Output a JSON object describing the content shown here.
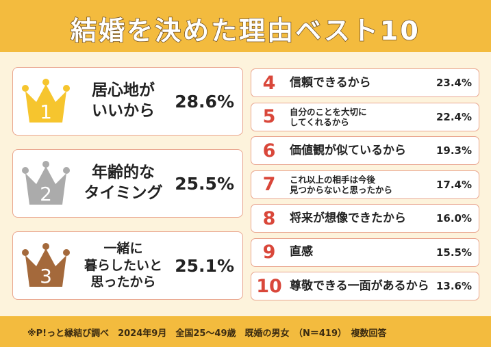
{
  "header": {
    "title": "結婚を決めた理由ベスト10"
  },
  "top": [
    {
      "rank": "1",
      "label": "居心地が\nいいから",
      "value": "28.6%"
    },
    {
      "rank": "2",
      "label": "年齢的な\nタイミング",
      "value": "25.5%"
    },
    {
      "rank": "3",
      "label": "一緒に\n暮らしたいと\n思ったから",
      "value": "25.1%"
    }
  ],
  "rest": [
    {
      "rank": "4",
      "label": "信頼できるから",
      "value": "23.4%"
    },
    {
      "rank": "5",
      "label": "自分のことを大切に\nしてくれるから",
      "value": "22.4%"
    },
    {
      "rank": "6",
      "label": "価値観が似ているから",
      "value": "19.3%"
    },
    {
      "rank": "7",
      "label": "これ以上の相手は今後\n見つからないと思ったから",
      "value": "17.4%"
    },
    {
      "rank": "8",
      "label": "将来が想像できたから",
      "value": "16.0%"
    },
    {
      "rank": "9",
      "label": "直感",
      "value": "15.5%"
    },
    {
      "rank": "10",
      "label": "尊敬できる一面があるから",
      "value": "13.6%"
    }
  ],
  "footer": {
    "note": "※P!っと縁結び調べ　2024年9月　全国25～49歳　既婚の男女　（N＝419）　複数回答"
  }
}
